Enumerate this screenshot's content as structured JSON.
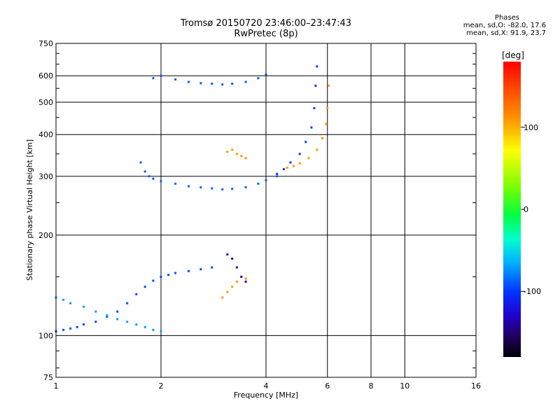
{
  "header": {
    "title": "Tromsø 20150720 23:46:00–23:47:43",
    "subtitle": "RwPretec (8p)"
  },
  "stats": {
    "heading": "Phases",
    "line_o": "mean, sd,O:  -82.0, 17.6",
    "line_x": "mean, sd,X:  91.9, 23.7"
  },
  "colorbar": {
    "unit_label": "[deg]",
    "ticks": [
      "100",
      "0",
      "-100"
    ],
    "tick_values": [
      100,
      0,
      -100
    ],
    "range": [
      -180,
      180
    ]
  },
  "chart_data": {
    "type": "scatter",
    "xlabel": "Frequency [MHz]",
    "ylabel": "Stationary phase Virtual Height [km]",
    "x_scale": "log",
    "y_scale": "log",
    "xlim": [
      1,
      16
    ],
    "ylim": [
      75,
      750
    ],
    "x_ticks": [
      1,
      2,
      4,
      6,
      8,
      10,
      16
    ],
    "x_tick_labels": [
      "1",
      "2",
      "4",
      "6",
      "8",
      "10",
      "16"
    ],
    "y_ticks": [
      75,
      100,
      200,
      300,
      400,
      500,
      600,
      750
    ],
    "y_tick_labels": [
      "75",
      "100",
      "200",
      "300",
      "400",
      "500",
      "600",
      "750"
    ],
    "grid": true,
    "color_dimension": "phase [deg]",
    "series": [
      {
        "x": [
          1.0,
          1.05,
          1.1,
          1.15,
          1.2,
          1.3,
          1.4,
          1.5,
          1.6,
          1.7,
          1.8,
          1.9,
          2.0,
          2.1,
          2.2,
          2.4,
          2.6,
          2.8
        ],
        "y": [
          103,
          104,
          105,
          106,
          108,
          110,
          114,
          118,
          125,
          133,
          140,
          146,
          150,
          152,
          154,
          156,
          158,
          160
        ],
        "phase": -95
      },
      {
        "x": [
          1.0,
          1.05,
          1.1,
          1.2,
          1.3,
          1.4,
          1.5,
          1.6,
          1.7,
          1.8,
          1.9,
          2.0
        ],
        "y": [
          130,
          128,
          125,
          122,
          118,
          115,
          112,
          110,
          108,
          106,
          104,
          103
        ],
        "phase": -70
      },
      {
        "x": [
          1.75,
          1.8,
          1.85,
          1.9,
          2.0,
          2.2,
          2.4,
          2.6,
          2.8,
          3.0,
          3.2,
          3.5,
          3.8,
          4.0,
          4.3
        ],
        "y": [
          330,
          310,
          300,
          295,
          290,
          285,
          280,
          278,
          276,
          274,
          275,
          278,
          285,
          292,
          300
        ],
        "phase": -88
      },
      {
        "x": [
          4.3,
          4.5,
          4.7,
          5.0,
          5.2,
          5.4,
          5.5,
          5.55,
          5.6
        ],
        "y": [
          305,
          315,
          330,
          350,
          380,
          420,
          480,
          560,
          640
        ],
        "phase": -100
      },
      {
        "x": [
          4.6,
          4.8,
          5.0,
          5.3,
          5.6,
          5.8,
          5.95,
          6.0,
          6.05
        ],
        "y": [
          318,
          322,
          328,
          340,
          360,
          390,
          430,
          480,
          560
        ],
        "phase": 110
      },
      {
        "x": [
          1.9,
          2.0,
          2.2,
          2.4,
          2.6,
          2.8,
          3.0,
          3.2,
          3.5,
          3.8,
          4.0
        ],
        "y": [
          590,
          600,
          585,
          575,
          570,
          568,
          565,
          568,
          575,
          590,
          605
        ],
        "phase": -90
      },
      {
        "x": [
          3.1,
          3.2,
          3.3,
          3.4,
          3.5
        ],
        "y": [
          355,
          360,
          350,
          345,
          340
        ],
        "phase": 110
      },
      {
        "x": [
          3.0,
          3.1,
          3.2,
          3.3,
          3.4,
          3.5
        ],
        "y": [
          130,
          135,
          140,
          145,
          150,
          148
        ],
        "phase": 110
      },
      {
        "x": [
          3.1,
          3.2,
          3.3,
          3.4,
          3.5
        ],
        "y": [
          175,
          170,
          160,
          150,
          145
        ],
        "phase": -130
      }
    ]
  }
}
